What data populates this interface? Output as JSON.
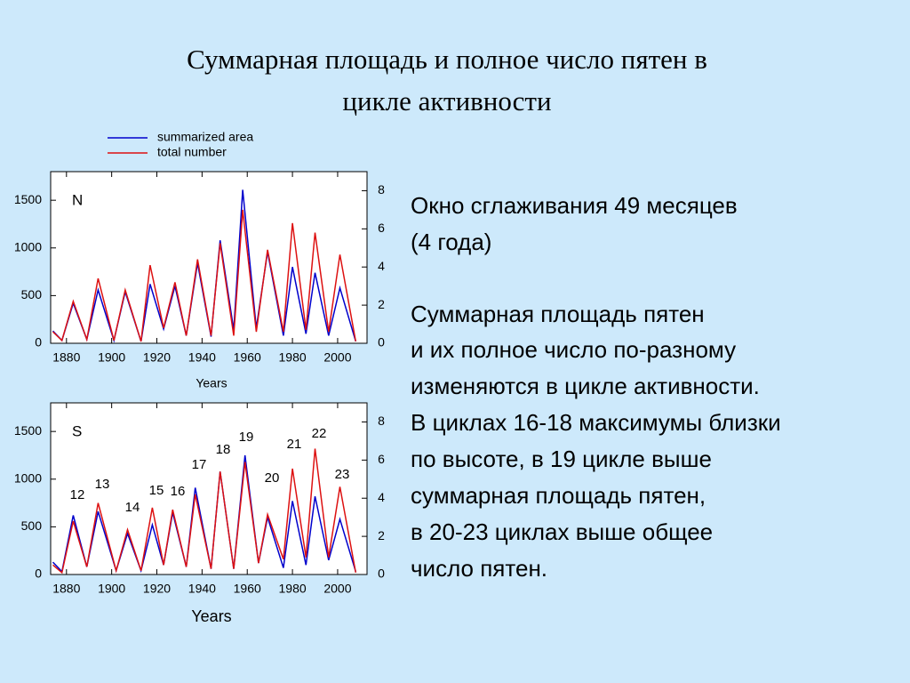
{
  "title": [
    "Суммарная площадь и полное число пятен в",
    "цикле активности"
  ],
  "body": [
    [
      "Окно сглаживания 49 месяцев",
      "(4 года)"
    ],
    [
      "Суммарная площадь пятен",
      "и их полное число по-разному",
      "изменяются в цикле активности.",
      "В циклах 16-18 максимумы близки",
      "по высоте, в 19 цикле выше",
      "суммарная площадь пятен,",
      "в 20-23 циклах выше общее",
      "число пятен."
    ]
  ],
  "chart_data": [
    {
      "type": "line",
      "label": "N",
      "xlabel": "Years",
      "x": [
        1874,
        1878,
        1883,
        1889,
        1894,
        1901,
        1906,
        1913,
        1917,
        1923,
        1928,
        1933,
        1938,
        1944,
        1948,
        1954,
        1958,
        1964,
        1969,
        1976,
        1980,
        1986,
        1990,
        1996,
        2001,
        2008
      ],
      "series": [
        {
          "name": "summarized area",
          "color": "#0000cc",
          "values": [
            130,
            30,
            420,
            40,
            560,
            30,
            540,
            20,
            620,
            150,
            600,
            80,
            840,
            70,
            1080,
            140,
            1610,
            160,
            960,
            80,
            800,
            100,
            740,
            80,
            580,
            20
          ]
        },
        {
          "name": "total number",
          "color": "#dd1111",
          "axis": "y2",
          "values": [
            0.6,
            0.15,
            2.2,
            0.2,
            3.4,
            0.15,
            2.8,
            0.1,
            4.1,
            0.8,
            3.2,
            0.4,
            4.4,
            0.4,
            5.25,
            0.4,
            7.0,
            0.6,
            4.9,
            0.6,
            6.3,
            0.7,
            5.8,
            0.6,
            4.65,
            0.1
          ]
        }
      ],
      "xlim": [
        1873,
        2013
      ],
      "xticks": [
        1880,
        1900,
        1920,
        1940,
        1960,
        1980,
        2000
      ],
      "ylim": [
        0,
        1800
      ],
      "yticks": [
        0,
        500,
        1000,
        1500
      ],
      "y2lim": [
        0,
        9
      ],
      "y2ticks": [
        0,
        2,
        4,
        6,
        8
      ]
    },
    {
      "type": "line",
      "label": "S",
      "xlabel": "Years",
      "x": [
        1874,
        1878,
        1883,
        1889,
        1894,
        1902,
        1907,
        1913,
        1918,
        1923,
        1927,
        1933,
        1937,
        1944,
        1948,
        1954,
        1959,
        1965,
        1969,
        1976,
        1980,
        1986,
        1990,
        1996,
        2001,
        2008
      ],
      "series": [
        {
          "color": "#0000cc",
          "values": [
            130,
            30,
            620,
            80,
            660,
            40,
            430,
            40,
            520,
            100,
            650,
            80,
            910,
            60,
            1080,
            60,
            1250,
            120,
            600,
            70,
            770,
            100,
            820,
            150,
            580,
            30
          ]
        },
        {
          "color": "#dd1111",
          "axis": "y2",
          "values": [
            0.5,
            0.1,
            2.8,
            0.4,
            3.75,
            0.2,
            2.35,
            0.2,
            3.5,
            0.5,
            3.4,
            0.4,
            4.2,
            0.3,
            5.4,
            0.3,
            5.9,
            0.6,
            3.15,
            0.8,
            5.55,
            0.9,
            6.6,
            0.9,
            4.6,
            0.1
          ]
        }
      ],
      "annotations": [
        "12",
        "13",
        "14",
        "15",
        "16",
        "17",
        "18",
        "19",
        "20",
        "21",
        "22",
        "23"
      ],
      "xlim": [
        1873,
        2013
      ],
      "xticks": [
        1880,
        1900,
        1920,
        1940,
        1960,
        1980,
        2000
      ],
      "ylim": [
        0,
        1800
      ],
      "yticks": [
        0,
        500,
        1000,
        1500
      ],
      "y2lim": [
        0,
        9
      ],
      "y2ticks": [
        0,
        2,
        4,
        6,
        8
      ]
    }
  ]
}
